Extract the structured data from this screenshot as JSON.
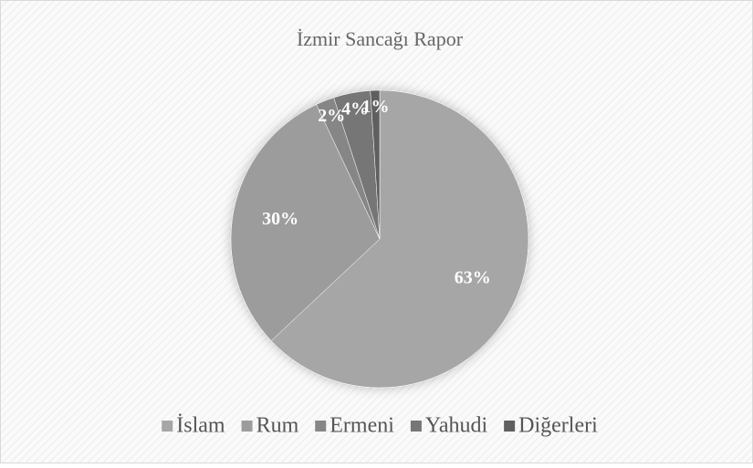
{
  "chart_data": {
    "type": "pie",
    "title": "İzmir Sancağı Rapor",
    "categories": [
      "İslam",
      "Rum",
      "Ermeni",
      "Yahudi",
      "Diğerleri"
    ],
    "values": [
      63,
      30,
      2,
      4,
      1
    ],
    "value_labels": [
      "63%",
      "30%",
      "2%",
      "4%",
      "1%"
    ],
    "colors": [
      "#a6a6a6",
      "#9c9c9c",
      "#868686",
      "#767676",
      "#5f5f5f"
    ],
    "legend": "bottom"
  }
}
